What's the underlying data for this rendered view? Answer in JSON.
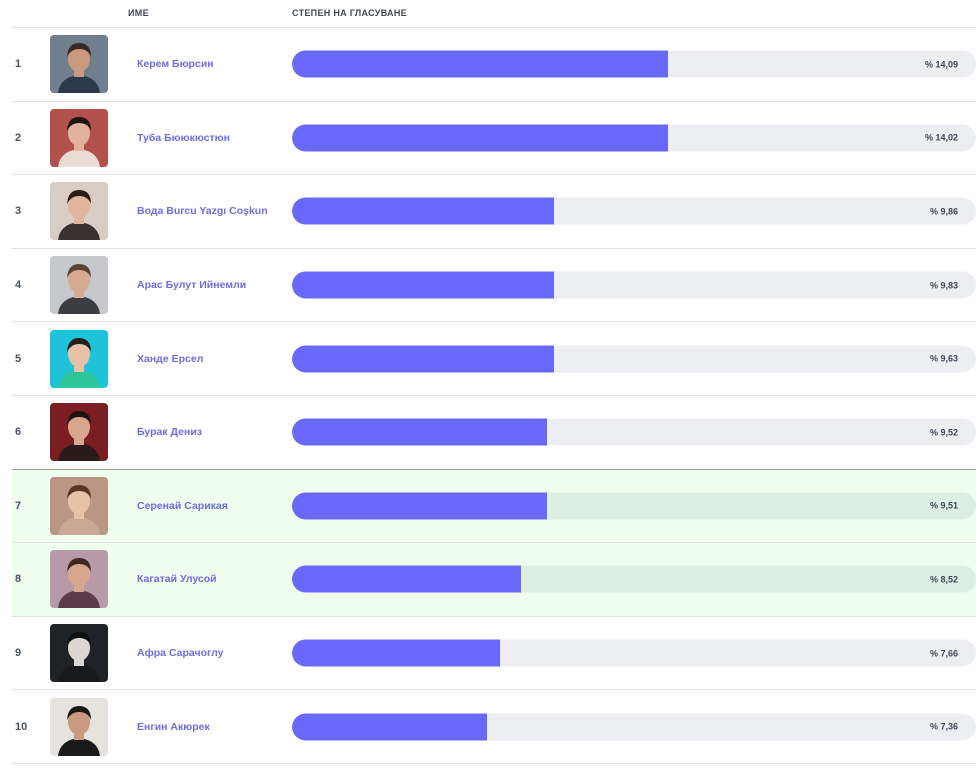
{
  "header": {
    "name_label": "ИМЕ",
    "rating_label": "СТЕПЕН НА ГЛАСУВАНЕ"
  },
  "colors": {
    "bar_fill": "#6868fb",
    "bar_track": "#edeef2",
    "name_link": "#6c6ce3",
    "highlight_row": "#effdee"
  },
  "rows": [
    {
      "rank": "1",
      "name": "Керем Бюрсин",
      "percent_label": "% 14,09",
      "fill_fraction": 0.55,
      "highlighted": false,
      "avatar": {
        "bg": "#6f7f8e",
        "skin": "#c99a7f",
        "hair": "#3a2a22",
        "shirt": "#2b3a4a"
      }
    },
    {
      "rank": "2",
      "name": "Туба Бююкюстюн",
      "percent_label": "% 14,02",
      "fill_fraction": 0.55,
      "highlighted": false,
      "avatar": {
        "bg": "#b2504c",
        "skin": "#e2b39c",
        "hair": "#1e1413",
        "shirt": "#e8dcd4"
      }
    },
    {
      "rank": "3",
      "name": "Вода Burcu Yazgı Coşkun",
      "percent_label": "% 9,86",
      "fill_fraction": 0.383,
      "highlighted": false,
      "avatar": {
        "bg": "#d8cdc4",
        "skin": "#e0b59c",
        "hair": "#2a1a14",
        "shirt": "#3b3130"
      }
    },
    {
      "rank": "4",
      "name": "Арас Булут Ийнемли",
      "percent_label": "% 9,83",
      "fill_fraction": 0.383,
      "highlighted": false,
      "avatar": {
        "bg": "#c6c8cb",
        "skin": "#d7ab93",
        "hair": "#5b4433",
        "shirt": "#3b3d42"
      }
    },
    {
      "rank": "5",
      "name": "Ханде Ерсел",
      "percent_label": "% 9,63",
      "fill_fraction": 0.383,
      "highlighted": false,
      "avatar": {
        "bg": "#1ec3da",
        "skin": "#e8c1a9",
        "hair": "#2b1d17",
        "shirt": "#2fc59a"
      }
    },
    {
      "rank": "6",
      "name": "Бурак Дениз",
      "percent_label": "% 9,52",
      "fill_fraction": 0.373,
      "highlighted": false,
      "divider_dark": true,
      "avatar": {
        "bg": "#7a1e22",
        "skin": "#d7a68c",
        "hair": "#1d1412",
        "shirt": "#2a1a1a"
      }
    },
    {
      "rank": "7",
      "name": "Серенай Сарикая",
      "percent_label": "% 9,51",
      "fill_fraction": 0.373,
      "highlighted": true,
      "avatar": {
        "bg": "#b99784",
        "skin": "#e8c1a9",
        "hair": "#5c3526",
        "shirt": "#c8a998"
      }
    },
    {
      "rank": "8",
      "name": "Кагатай Улусой",
      "percent_label": "% 8,52",
      "fill_fraction": 0.335,
      "highlighted": true,
      "avatar": {
        "bg": "#b79aa8",
        "skin": "#d8a68c",
        "hair": "#3a2a22",
        "shirt": "#5a3d48"
      }
    },
    {
      "rank": "9",
      "name": "Афра Сарачоглу",
      "percent_label": "% 7,66",
      "fill_fraction": 0.304,
      "highlighted": false,
      "avatar": {
        "bg": "#1f2226",
        "skin": "#dcd5d2",
        "hair": "#0f1012",
        "shirt": "#181a1d"
      }
    },
    {
      "rank": "10",
      "name": "Енгин Акюрек",
      "percent_label": "% 7,36",
      "fill_fraction": 0.285,
      "highlighted": false,
      "avatar": {
        "bg": "#e6e3df",
        "skin": "#c99a7f",
        "hair": "#1e1615",
        "shirt": "#1a1a1a"
      }
    }
  ]
}
